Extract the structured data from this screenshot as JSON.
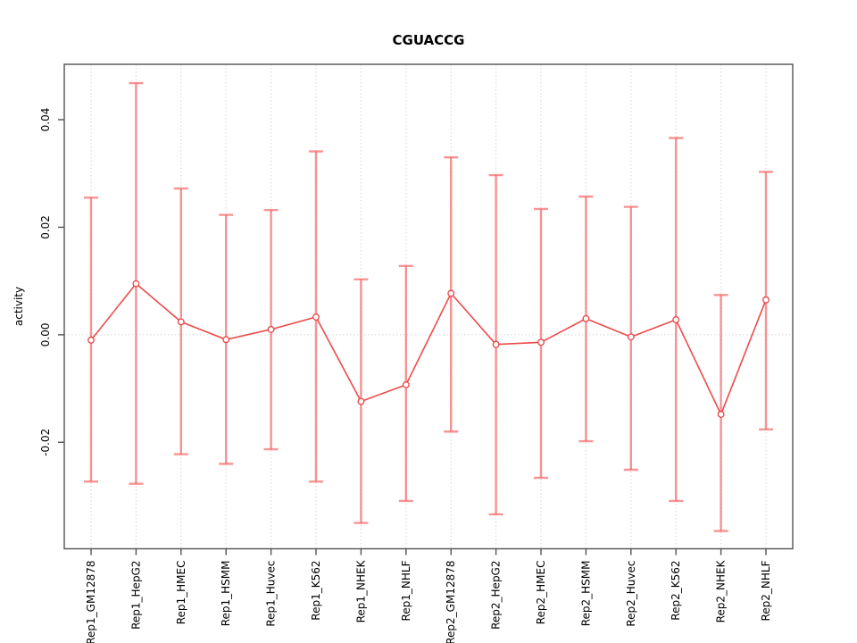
{
  "page": {
    "background": "#ffffff"
  },
  "chart_data": {
    "type": "line",
    "title": "CGUACCG",
    "ylabel": "activity",
    "xlabel": "",
    "categories": [
      "Rep1_GM12878",
      "Rep1_HepG2",
      "Rep1_HMEC",
      "Rep1_HSMM",
      "Rep1_Huvec",
      "Rep1_K562",
      "Rep1_NHEK",
      "Rep1_NHLF",
      "Rep2_GM12878",
      "Rep2_HepG2",
      "Rep2_HMEC",
      "Rep2_HSMM",
      "Rep2_Huvec",
      "Rep2_K562",
      "Rep2_NHEK",
      "Rep2_NHLF"
    ],
    "series": [
      {
        "name": "activity",
        "marker": "open-circle",
        "values": [
          -0.001,
          0.0095,
          0.0024,
          -0.0009,
          0.001,
          0.0033,
          -0.0124,
          -0.0093,
          0.0077,
          -0.0018,
          -0.0014,
          0.003,
          -0.0004,
          0.0028,
          -0.0148,
          0.0065
        ],
        "upper": [
          0.0255,
          0.0468,
          0.0272,
          0.0223,
          0.0232,
          0.0341,
          0.0103,
          0.0128,
          0.033,
          0.0297,
          0.0234,
          0.0257,
          0.0238,
          0.0366,
          0.0074,
          0.0303
        ],
        "lower": [
          -0.0273,
          -0.0277,
          -0.0222,
          -0.024,
          -0.0213,
          -0.0273,
          -0.035,
          -0.0309,
          -0.018,
          -0.0334,
          -0.0266,
          -0.0198,
          -0.0251,
          -0.0309,
          -0.0365,
          -0.0176
        ]
      }
    ],
    "ylim": [
      -0.0398,
      0.0503
    ],
    "yticks": [
      {
        "value": -0.02,
        "label": "-0.02"
      },
      {
        "value": 0.0,
        "label": "0.00"
      },
      {
        "value": 0.02,
        "label": "0.02"
      },
      {
        "value": 0.04,
        "label": "0.04"
      }
    ],
    "grid": {
      "vertical_at_each_category": true,
      "horizontal_at_zero": true,
      "style": "dotted"
    },
    "legend": null,
    "colors": {
      "series_line": "#ec4b4b",
      "marker_stroke": "#e94444",
      "error_bar": "rgba(246,98,98,0.68)",
      "grid": "#d6d6d6",
      "axis": "#525252",
      "text": "#000000",
      "background": "#ffffff"
    }
  }
}
